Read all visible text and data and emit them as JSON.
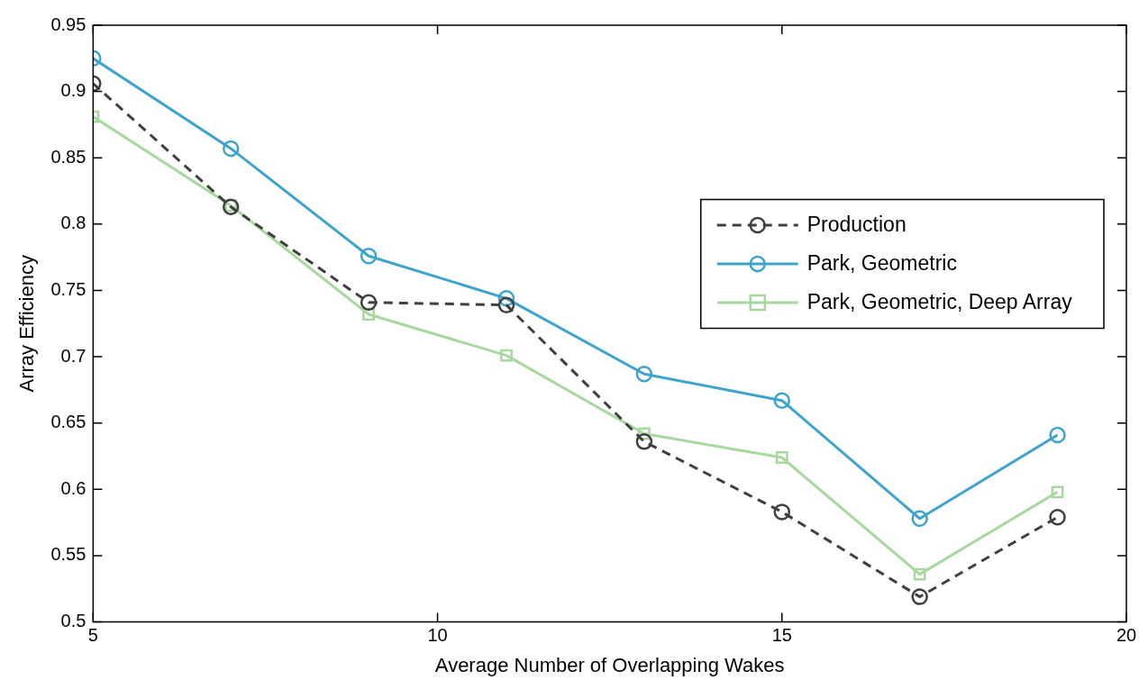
{
  "chart_data": {
    "type": "line",
    "xlabel": "Average Number of Overlapping Wakes",
    "ylabel": "Array Efficiency",
    "x": [
      5,
      7,
      9,
      11,
      13,
      15,
      17,
      19
    ],
    "series": [
      {
        "name": "Production",
        "color": "#404040",
        "line_style": "dashed",
        "marker": "circle",
        "values": [
          0.906,
          0.813,
          0.741,
          0.739,
          0.636,
          0.583,
          0.519,
          0.579
        ]
      },
      {
        "name": "Park, Geometric",
        "color": "#3fa4cc",
        "line_style": "solid",
        "marker": "circle",
        "values": [
          0.925,
          0.857,
          0.776,
          0.744,
          0.687,
          0.667,
          0.578,
          0.641
        ]
      },
      {
        "name": "Park, Geometric, Deep Array",
        "color": "#a8d8a0",
        "line_style": "solid",
        "marker": "square",
        "values": [
          0.881,
          0.814,
          0.732,
          0.701,
          0.642,
          0.624,
          0.536,
          0.598
        ]
      }
    ],
    "xlim": [
      5,
      20
    ],
    "xticks": [
      5,
      10,
      15,
      20
    ],
    "ylim": [
      0.5,
      0.95
    ],
    "yticks": [
      0.5,
      0.55,
      0.6,
      0.65,
      0.7,
      0.75,
      0.8,
      0.85,
      0.9,
      0.95
    ],
    "grid": false,
    "legend": "right"
  }
}
